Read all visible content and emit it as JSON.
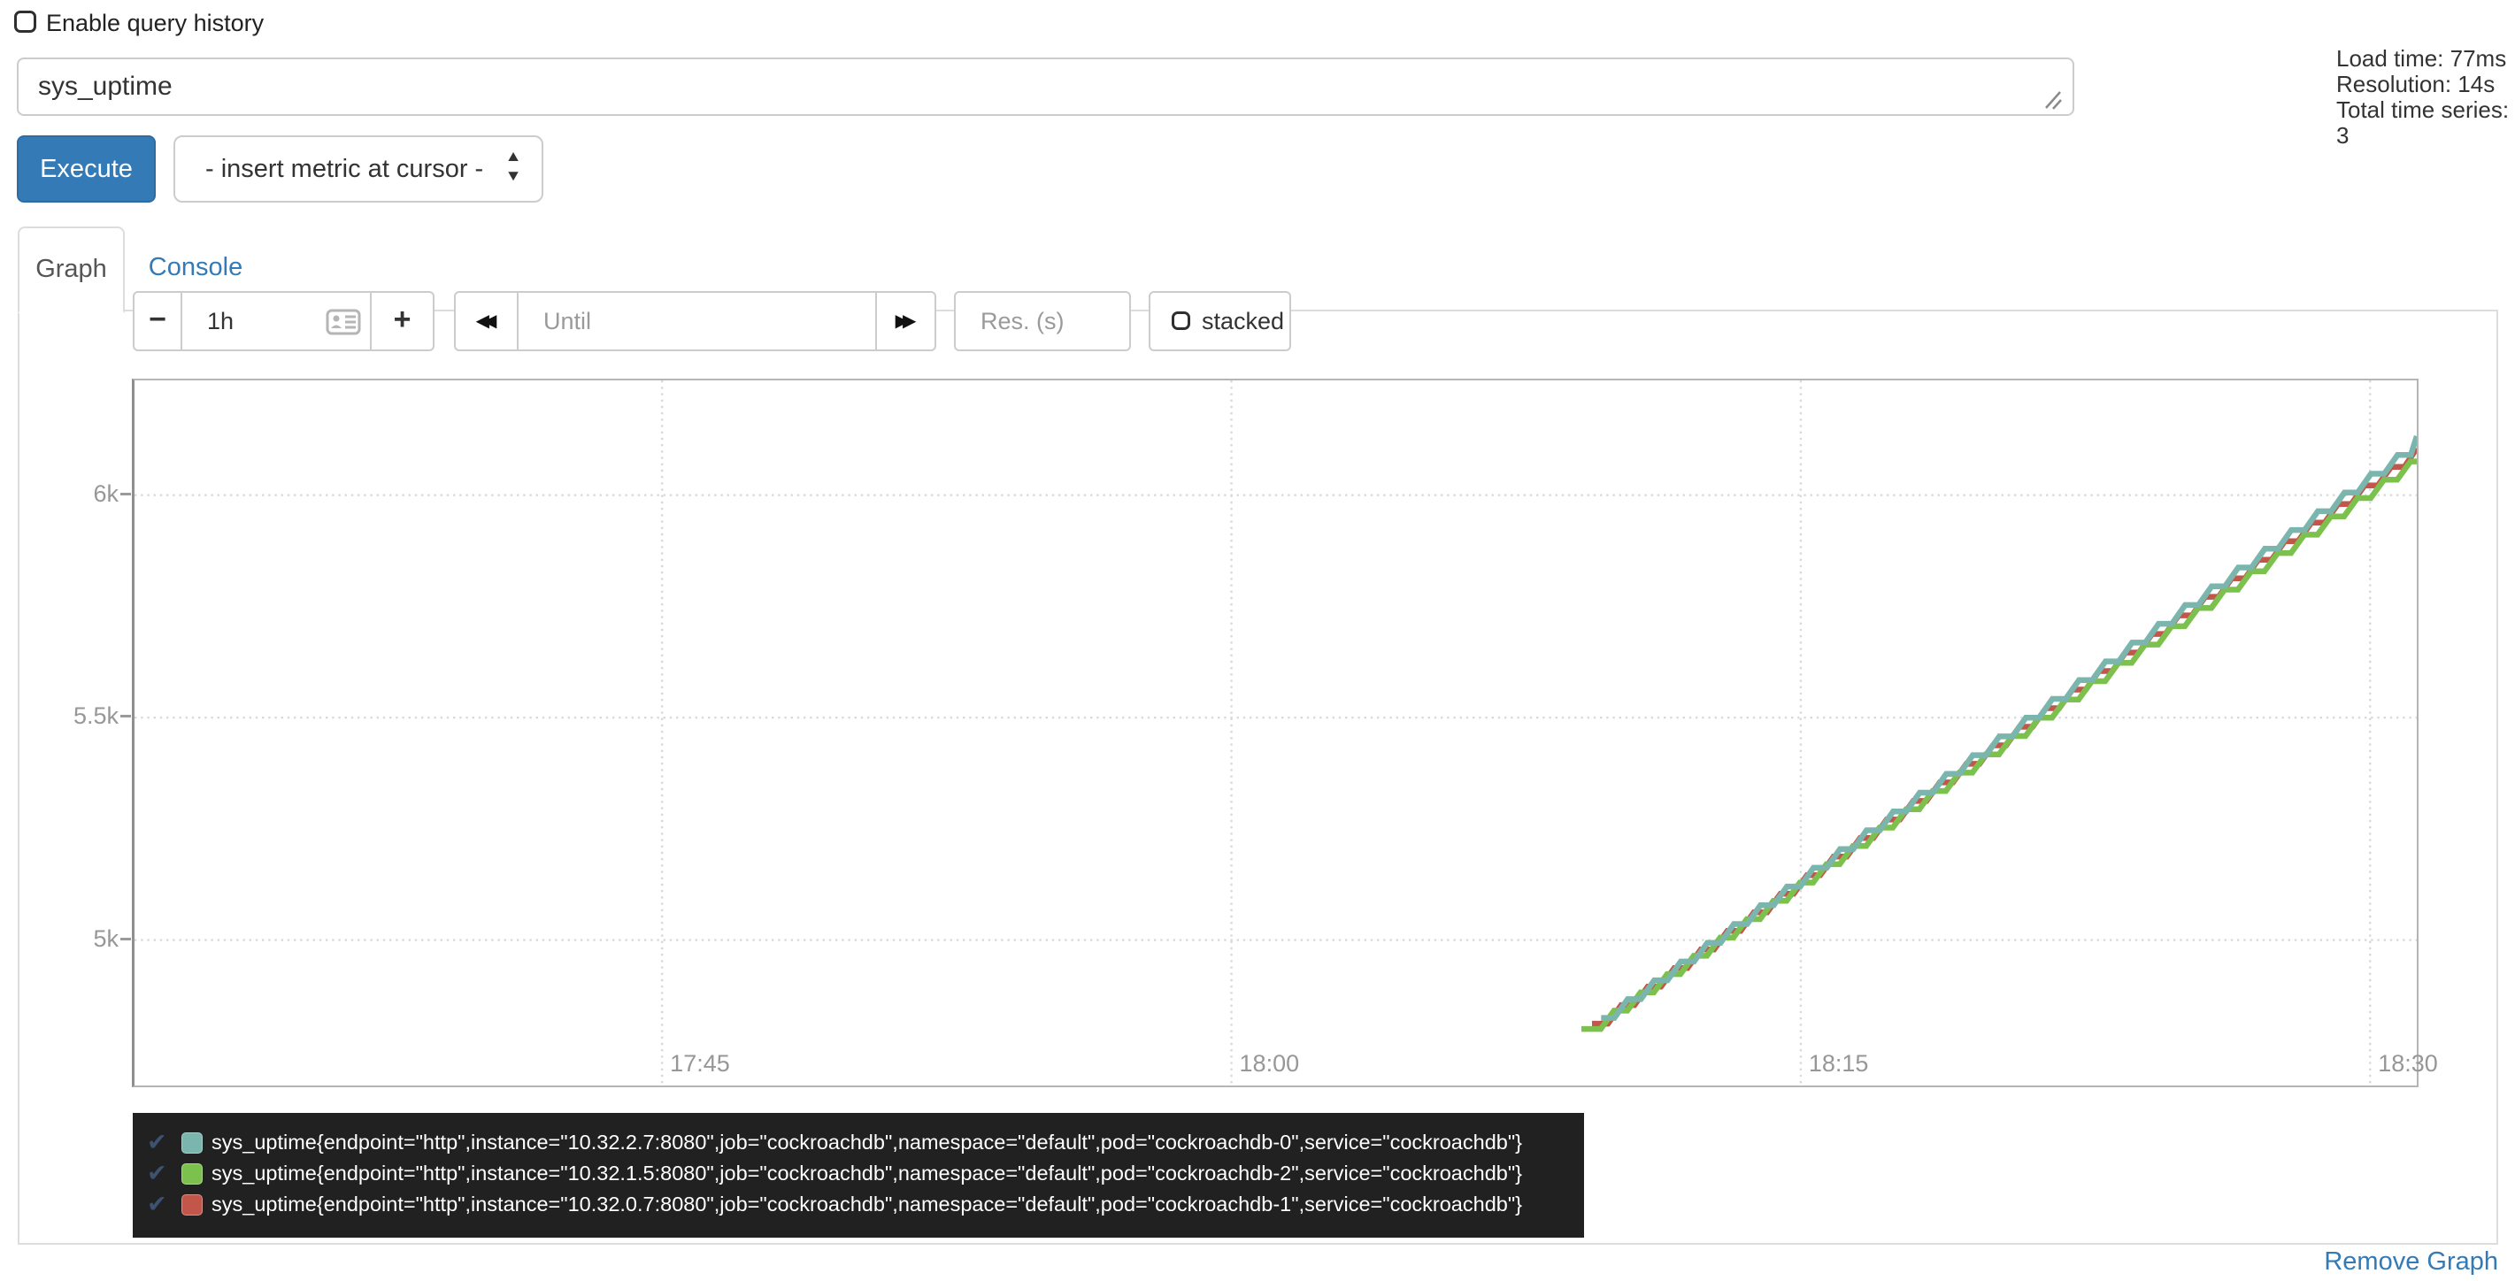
{
  "query_history": {
    "label": "Enable query history",
    "checked": false
  },
  "query": {
    "value": "sys_uptime"
  },
  "stats": {
    "load_time": "Load time: 77ms",
    "resolution": "Resolution: 14s",
    "total_series": "Total time series: 3"
  },
  "toolbar": {
    "execute_label": "Execute",
    "metric_select_value": "- insert metric at cursor -"
  },
  "tabs": {
    "graph": "Graph",
    "console": "Console"
  },
  "graph_controls": {
    "range_value": "1h",
    "until_placeholder": "Until",
    "res_placeholder": "Res. (s)",
    "stacked_label": "stacked",
    "stacked_checked": false
  },
  "icons": {
    "minus": "−",
    "plus": "+",
    "rewind": "◀◀",
    "forward": "▶▶",
    "select_up": "▲",
    "select_down": "▼",
    "series_checkmark": "✔"
  },
  "chart_data": {
    "type": "line",
    "title": "",
    "xlabel": "",
    "ylabel": "",
    "grid": true,
    "legend_position": "bottom",
    "x_ticks": [
      {
        "label": "17:45",
        "minutes": 1065
      },
      {
        "label": "18:00",
        "minutes": 1080
      },
      {
        "label": "18:15",
        "minutes": 1095
      },
      {
        "label": "18:30",
        "minutes": 1110
      }
    ],
    "y_ticks": [
      {
        "label": "5k",
        "value": 5000
      },
      {
        "label": "5.5k",
        "value": 5500
      },
      {
        "label": "6k",
        "value": 6000
      }
    ],
    "x_range_minutes": [
      1051.1,
      1111.23
    ],
    "y_range": [
      4673,
      6258
    ],
    "line_style": "step",
    "series": [
      {
        "name": "sys_uptime{endpoint=\"http\",instance=\"10.32.2.7:8080\",job=\"cockroachdb\",namespace=\"default\",pod=\"cockroachdb-0\",service=\"cockroachdb\"}",
        "color": "#7AB5AE",
        "start": {
          "minutes": 1089.74,
          "value": 4825
        },
        "end": {
          "minutes": 1111.23,
          "value": 6121
        }
      },
      {
        "name": "sys_uptime{endpoint=\"http\",instance=\"10.32.1.5:8080\",job=\"cockroachdb\",namespace=\"default\",pod=\"cockroachdb-2\",service=\"cockroachdb\"}",
        "color": "#7CC14E",
        "start": {
          "minutes": 1089.22,
          "value": 4800
        },
        "end": {
          "minutes": 1111.23,
          "value": 6095
        }
      },
      {
        "name": "sys_uptime{endpoint=\"http\",instance=\"10.32.0.7:8080\",job=\"cockroachdb\",namespace=\"default\",pod=\"cockroachdb-1\",service=\"cockroachdb\"}",
        "color": "#C2564A",
        "start": {
          "minutes": 1089.5,
          "value": 4812
        },
        "end": {
          "minutes": 1111.23,
          "value": 6108
        }
      }
    ]
  },
  "footer": {
    "remove_graph": "Remove Graph"
  }
}
